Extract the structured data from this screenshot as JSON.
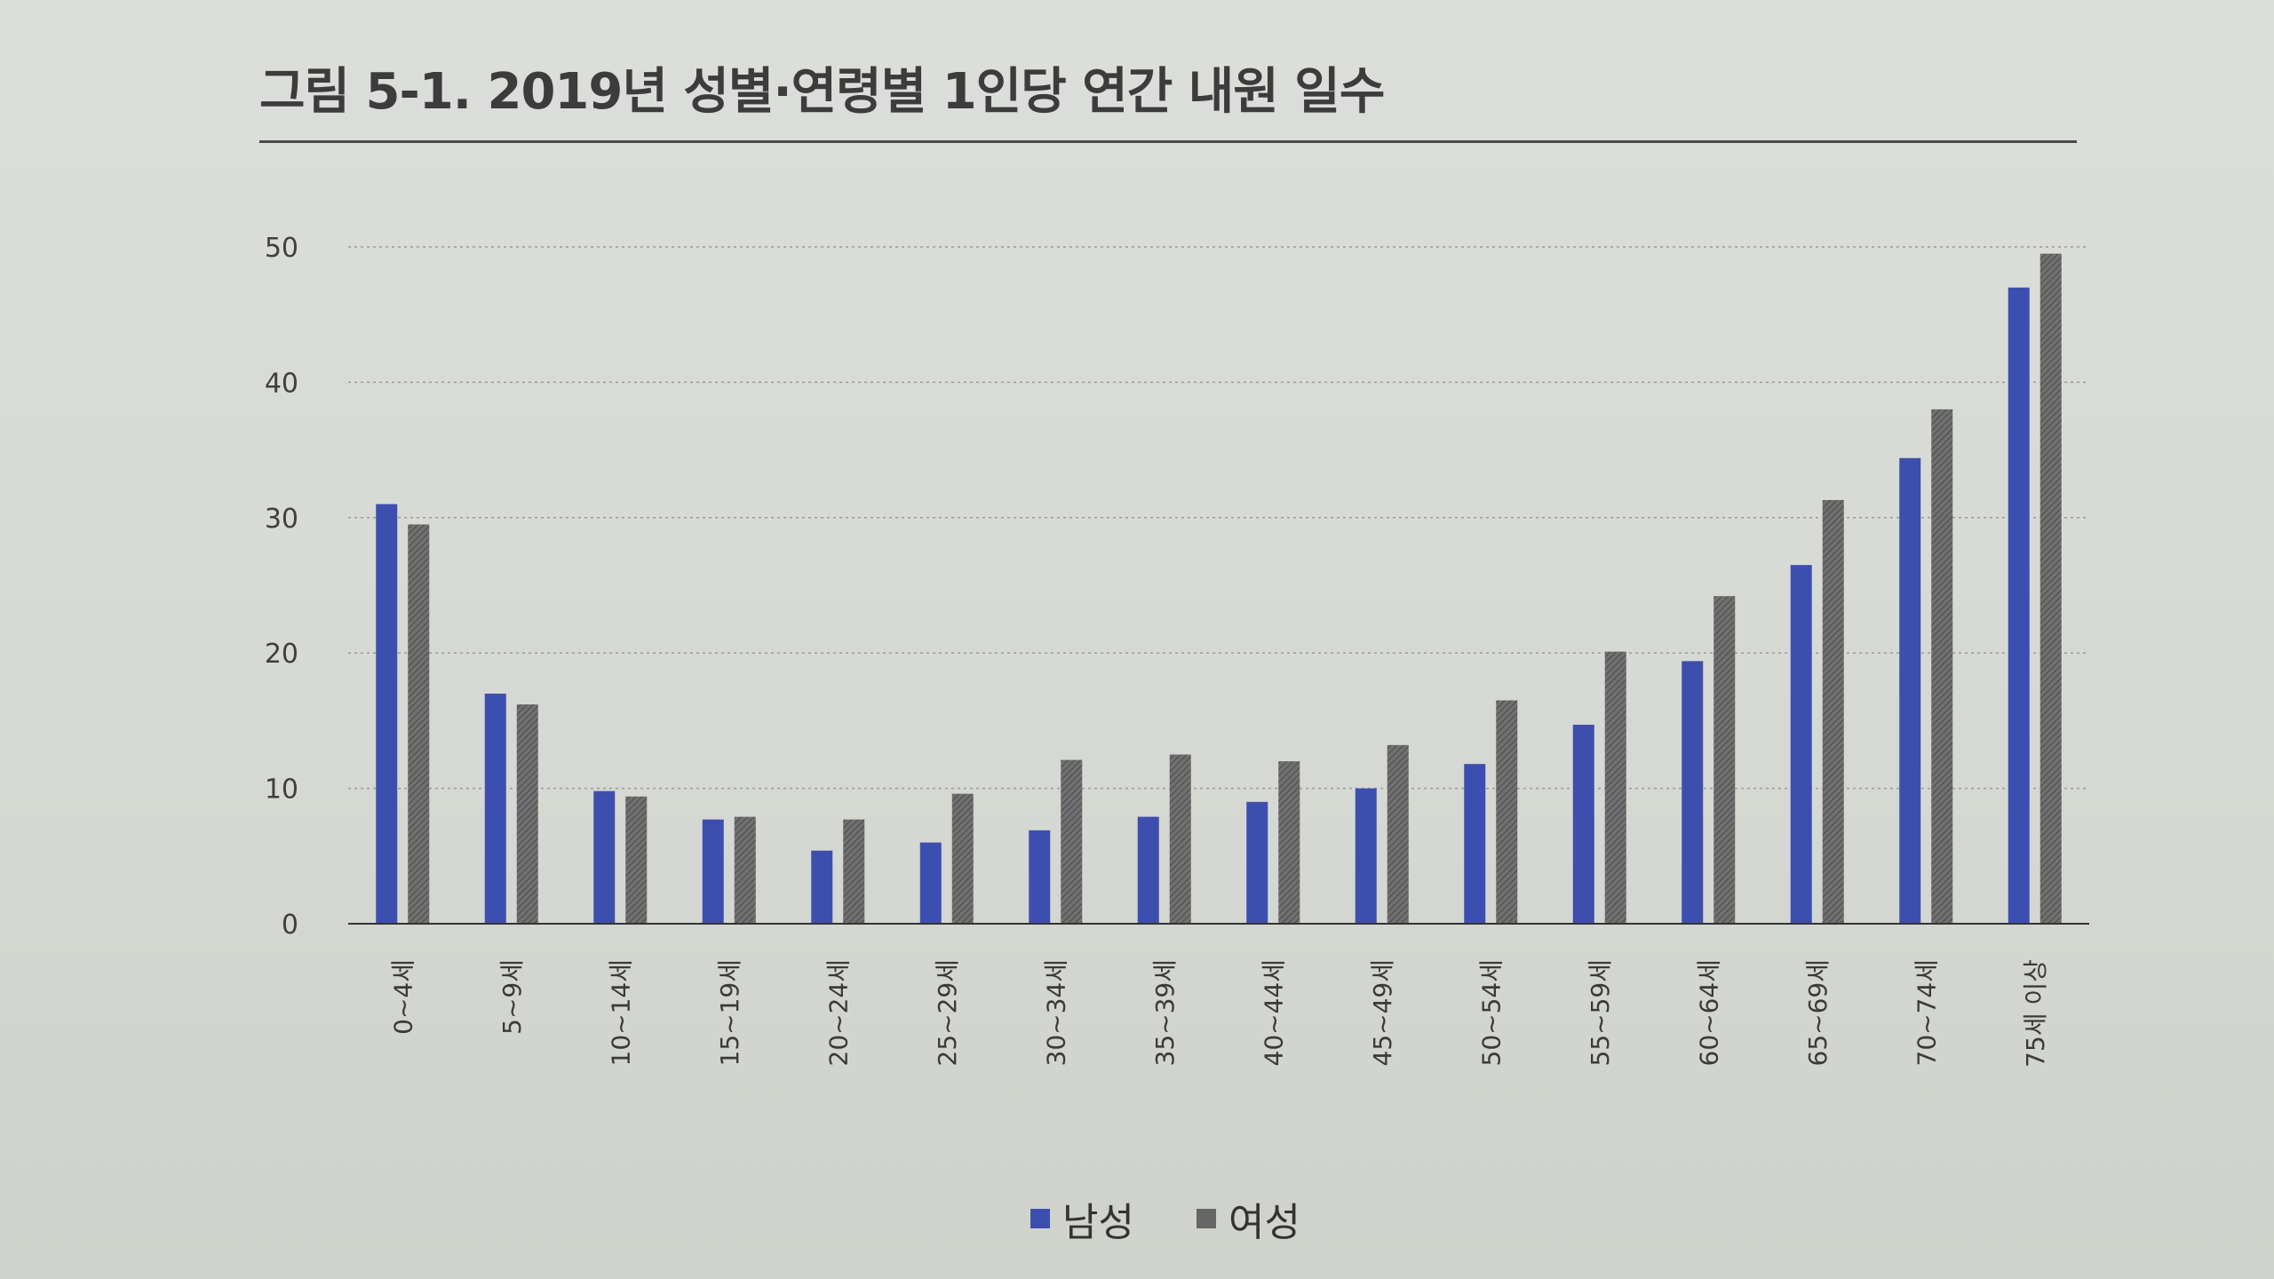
{
  "figure": {
    "title": "그림 5-1. 2019년 성별·연령별 1인당 연간 내원 일수"
  },
  "chart_data": {
    "type": "bar",
    "title": "그림 5-1. 2019년 성별·연령별 1인당 연간 내원 일수",
    "xlabel": "",
    "ylabel": "",
    "ylim": [
      0,
      50
    ],
    "yticks": [
      0,
      10,
      20,
      30,
      40,
      50
    ],
    "grid": true,
    "legend_position": "bottom",
    "categories": [
      "0~4세",
      "5~9세",
      "10~14세",
      "15~19세",
      "20~24세",
      "25~29세",
      "30~34세",
      "35~39세",
      "40~44세",
      "45~49세",
      "50~54세",
      "55~59세",
      "60~64세",
      "65~69세",
      "70~74세",
      "75세 이상"
    ],
    "series": [
      {
        "name": "남성",
        "color": "#3d4fae",
        "values": [
          31.0,
          17.0,
          9.8,
          7.7,
          5.4,
          6.0,
          6.9,
          7.9,
          9.0,
          10.0,
          11.8,
          14.7,
          19.4,
          26.5,
          34.4,
          47.0
        ]
      },
      {
        "name": "여성",
        "color": "#666666",
        "values": [
          29.5,
          16.2,
          9.4,
          7.9,
          7.7,
          9.6,
          12.1,
          12.5,
          12.0,
          13.2,
          16.5,
          20.1,
          24.2,
          31.3,
          38.0,
          49.5
        ]
      }
    ]
  }
}
